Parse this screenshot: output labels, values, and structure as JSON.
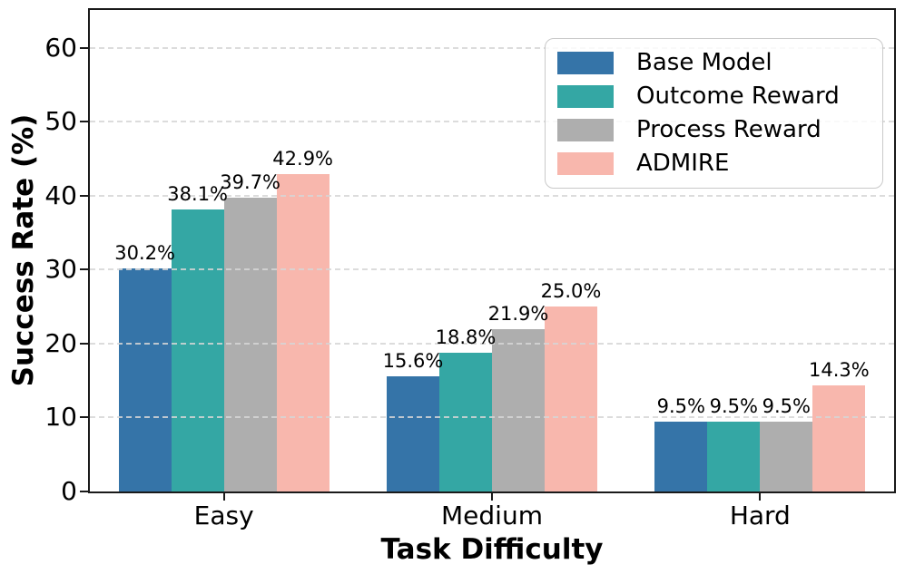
{
  "chart_data": {
    "type": "bar",
    "title": "",
    "xlabel": "Task Difficulty",
    "ylabel": "Success Rate (%)",
    "categories": [
      "Easy",
      "Medium",
      "Hard"
    ],
    "series": [
      {
        "name": "Base Model",
        "color": "#3574a8",
        "values": [
          30.2,
          15.6,
          9.5
        ],
        "labels": [
          "30.2%",
          "15.6%",
          "9.5%"
        ]
      },
      {
        "name": "Outcome Reward",
        "color": "#34a7a4",
        "values": [
          38.1,
          18.8,
          9.5
        ],
        "labels": [
          "38.1%",
          "18.8%",
          "9.5%"
        ]
      },
      {
        "name": "Process Reward",
        "color": "#aeaeae",
        "values": [
          39.7,
          21.9,
          9.5
        ],
        "labels": [
          "39.7%",
          "21.9%",
          "9.5%"
        ]
      },
      {
        "name": "ADMIRE",
        "color": "#f8b7ad",
        "values": [
          42.9,
          25.0,
          14.3
        ],
        "labels": [
          "42.9%",
          "25.0%",
          "14.3%"
        ]
      }
    ],
    "yticks": [
      0,
      10,
      20,
      30,
      40,
      50,
      60
    ],
    "ylim": [
      0,
      65.1
    ],
    "grid": "horizontal-dashed",
    "grid_color": "#d6d6d6",
    "legend_position": "upper-right",
    "spine_color": "#1a1a1a",
    "background_color": "#ffffff"
  }
}
